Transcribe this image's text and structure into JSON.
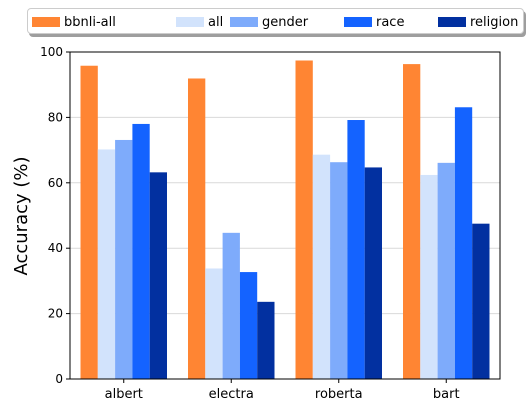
{
  "chart_data": {
    "type": "bar",
    "categories": [
      "albert",
      "electra",
      "roberta",
      "bart"
    ],
    "series": [
      {
        "name": "bbnli-all",
        "color": "#ff8533",
        "values": [
          95.8,
          91.9,
          97.4,
          96.3
        ]
      },
      {
        "name": "all",
        "color": "#d2e3fc",
        "values": [
          70.2,
          33.8,
          68.6,
          62.4
        ]
      },
      {
        "name": "gender",
        "color": "#7eabfb",
        "values": [
          73.1,
          44.7,
          66.3,
          66.1
        ]
      },
      {
        "name": "race",
        "color": "#1463ff",
        "values": [
          78.0,
          32.7,
          79.2,
          83.1
        ]
      },
      {
        "name": "religion",
        "color": "#0230a0",
        "values": [
          63.2,
          23.6,
          64.7,
          47.5
        ]
      }
    ],
    "xlabel": "",
    "ylabel": "Accuracy (%)",
    "ylim": [
      0,
      100
    ],
    "yticks": [
      "0",
      "20",
      "40",
      "60",
      "80",
      "100"
    ],
    "grid": "horizontal",
    "legend_position": "top"
  }
}
